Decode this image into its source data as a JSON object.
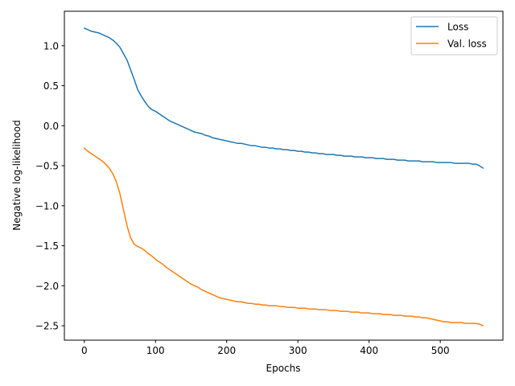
{
  "chart_data": {
    "type": "line",
    "title": "",
    "xlabel": "Epochs",
    "ylabel": "Negative log-likelihood",
    "xlim": [
      -28,
      588
    ],
    "ylim": [
      -2.68,
      1.43
    ],
    "xticks": [
      0,
      100,
      200,
      300,
      400,
      500
    ],
    "xtick_labels": [
      "0",
      "100",
      "200",
      "300",
      "400",
      "500"
    ],
    "yticks": [
      -2.5,
      -2.0,
      -1.5,
      -1.0,
      -0.5,
      0.0,
      0.5,
      1.0
    ],
    "ytick_labels": [
      "−2.5",
      "−2.0",
      "−1.5",
      "−1.0",
      "−0.5",
      "0.0",
      "0.5",
      "1.0"
    ],
    "grid": false,
    "legend_position": "top-right",
    "series": [
      {
        "name": "Loss",
        "color": "#1f77b4",
        "x": [
          0,
          5,
          10,
          15,
          20,
          25,
          30,
          35,
          40,
          45,
          50,
          55,
          60,
          65,
          70,
          75,
          80,
          85,
          90,
          95,
          100,
          105,
          110,
          115,
          120,
          125,
          130,
          135,
          140,
          145,
          150,
          155,
          160,
          165,
          170,
          175,
          180,
          185,
          190,
          195,
          200,
          205,
          210,
          215,
          220,
          225,
          230,
          235,
          240,
          245,
          250,
          255,
          260,
          265,
          270,
          275,
          280,
          285,
          290,
          295,
          300,
          305,
          310,
          315,
          320,
          325,
          330,
          335,
          340,
          345,
          350,
          355,
          360,
          365,
          370,
          375,
          380,
          385,
          390,
          395,
          400,
          405,
          410,
          415,
          420,
          425,
          430,
          435,
          440,
          445,
          450,
          455,
          460,
          465,
          470,
          475,
          480,
          485,
          490,
          495,
          500,
          505,
          510,
          515,
          520,
          525,
          530,
          535,
          540,
          545,
          550,
          555,
          560
        ],
        "y": [
          1.22,
          1.2,
          1.18,
          1.17,
          1.16,
          1.14,
          1.12,
          1.1,
          1.07,
          1.03,
          0.98,
          0.9,
          0.82,
          0.7,
          0.58,
          0.45,
          0.37,
          0.3,
          0.24,
          0.2,
          0.18,
          0.15,
          0.12,
          0.09,
          0.06,
          0.04,
          0.02,
          0.0,
          -0.02,
          -0.04,
          -0.06,
          -0.08,
          -0.09,
          -0.1,
          -0.12,
          -0.13,
          -0.15,
          -0.16,
          -0.17,
          -0.18,
          -0.19,
          -0.2,
          -0.21,
          -0.22,
          -0.22,
          -0.23,
          -0.24,
          -0.25,
          -0.25,
          -0.26,
          -0.27,
          -0.27,
          -0.28,
          -0.28,
          -0.29,
          -0.29,
          -0.3,
          -0.3,
          -0.31,
          -0.31,
          -0.32,
          -0.32,
          -0.33,
          -0.33,
          -0.34,
          -0.34,
          -0.35,
          -0.35,
          -0.36,
          -0.36,
          -0.36,
          -0.37,
          -0.37,
          -0.38,
          -0.38,
          -0.38,
          -0.39,
          -0.39,
          -0.39,
          -0.4,
          -0.4,
          -0.4,
          -0.41,
          -0.41,
          -0.41,
          -0.42,
          -0.42,
          -0.42,
          -0.43,
          -0.43,
          -0.43,
          -0.44,
          -0.44,
          -0.44,
          -0.44,
          -0.45,
          -0.45,
          -0.45,
          -0.45,
          -0.46,
          -0.46,
          -0.46,
          -0.46,
          -0.46,
          -0.47,
          -0.47,
          -0.47,
          -0.47,
          -0.47,
          -0.48,
          -0.48,
          -0.5,
          -0.53
        ]
      },
      {
        "name": "Val. loss",
        "color": "#ff7f0e",
        "x": [
          0,
          5,
          10,
          15,
          20,
          25,
          30,
          35,
          40,
          45,
          50,
          55,
          60,
          65,
          70,
          75,
          80,
          85,
          90,
          95,
          100,
          105,
          110,
          115,
          120,
          125,
          130,
          135,
          140,
          145,
          150,
          155,
          160,
          165,
          170,
          175,
          180,
          185,
          190,
          195,
          200,
          205,
          210,
          215,
          220,
          225,
          230,
          235,
          240,
          245,
          250,
          255,
          260,
          265,
          270,
          275,
          280,
          285,
          290,
          295,
          300,
          305,
          310,
          315,
          320,
          325,
          330,
          335,
          340,
          345,
          350,
          355,
          360,
          365,
          370,
          375,
          380,
          385,
          390,
          395,
          400,
          405,
          410,
          415,
          420,
          425,
          430,
          435,
          440,
          445,
          450,
          455,
          460,
          465,
          470,
          475,
          480,
          485,
          490,
          495,
          500,
          505,
          510,
          515,
          520,
          525,
          530,
          535,
          540,
          545,
          550,
          555,
          560
        ],
        "y": [
          -0.28,
          -0.32,
          -0.35,
          -0.38,
          -0.41,
          -0.44,
          -0.48,
          -0.53,
          -0.6,
          -0.7,
          -0.85,
          -1.05,
          -1.25,
          -1.4,
          -1.48,
          -1.51,
          -1.53,
          -1.56,
          -1.6,
          -1.63,
          -1.67,
          -1.7,
          -1.73,
          -1.77,
          -1.8,
          -1.83,
          -1.86,
          -1.89,
          -1.92,
          -1.95,
          -1.98,
          -2.0,
          -2.02,
          -2.05,
          -2.07,
          -2.09,
          -2.11,
          -2.13,
          -2.15,
          -2.16,
          -2.17,
          -2.18,
          -2.19,
          -2.2,
          -2.2,
          -2.21,
          -2.22,
          -2.22,
          -2.23,
          -2.23,
          -2.24,
          -2.24,
          -2.25,
          -2.25,
          -2.25,
          -2.26,
          -2.26,
          -2.27,
          -2.27,
          -2.27,
          -2.28,
          -2.28,
          -2.28,
          -2.29,
          -2.29,
          -2.29,
          -2.3,
          -2.3,
          -2.3,
          -2.31,
          -2.31,
          -2.31,
          -2.32,
          -2.32,
          -2.32,
          -2.33,
          -2.33,
          -2.33,
          -2.34,
          -2.34,
          -2.34,
          -2.35,
          -2.35,
          -2.35,
          -2.36,
          -2.36,
          -2.36,
          -2.37,
          -2.37,
          -2.37,
          -2.38,
          -2.38,
          -2.38,
          -2.39,
          -2.39,
          -2.4,
          -2.4,
          -2.41,
          -2.42,
          -2.43,
          -2.44,
          -2.45,
          -2.45,
          -2.46,
          -2.46,
          -2.46,
          -2.46,
          -2.47,
          -2.47,
          -2.47,
          -2.47,
          -2.48,
          -2.5
        ]
      }
    ]
  }
}
